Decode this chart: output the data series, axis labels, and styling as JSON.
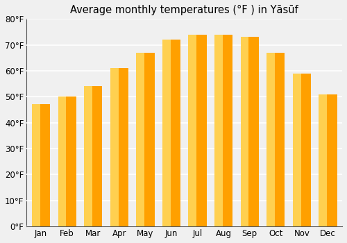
{
  "title": "Average monthly temperatures (°F ) in Yāsūf",
  "months": [
    "Jan",
    "Feb",
    "Mar",
    "Apr",
    "May",
    "Jun",
    "Jul",
    "Aug",
    "Sep",
    "Oct",
    "Nov",
    "Dec"
  ],
  "values": [
    47,
    50,
    54,
    61,
    67,
    72,
    74,
    74,
    73,
    67,
    59,
    51
  ],
  "ylim": [
    0,
    80
  ],
  "yticks": [
    0,
    10,
    20,
    30,
    40,
    50,
    60,
    70,
    80
  ],
  "ytick_labels": [
    "0°F",
    "10°F",
    "20°F",
    "30°F",
    "40°F",
    "50°F",
    "60°F",
    "70°F",
    "80°F"
  ],
  "background_color": "#f0f0f0",
  "grid_color": "#ffffff",
  "bar_color_left": "#FFD050",
  "bar_color_right": "#FFA000",
  "bar_edge_color": "#c8940000",
  "title_fontsize": 10.5,
  "tick_fontsize": 8.5,
  "bar_width": 0.7
}
